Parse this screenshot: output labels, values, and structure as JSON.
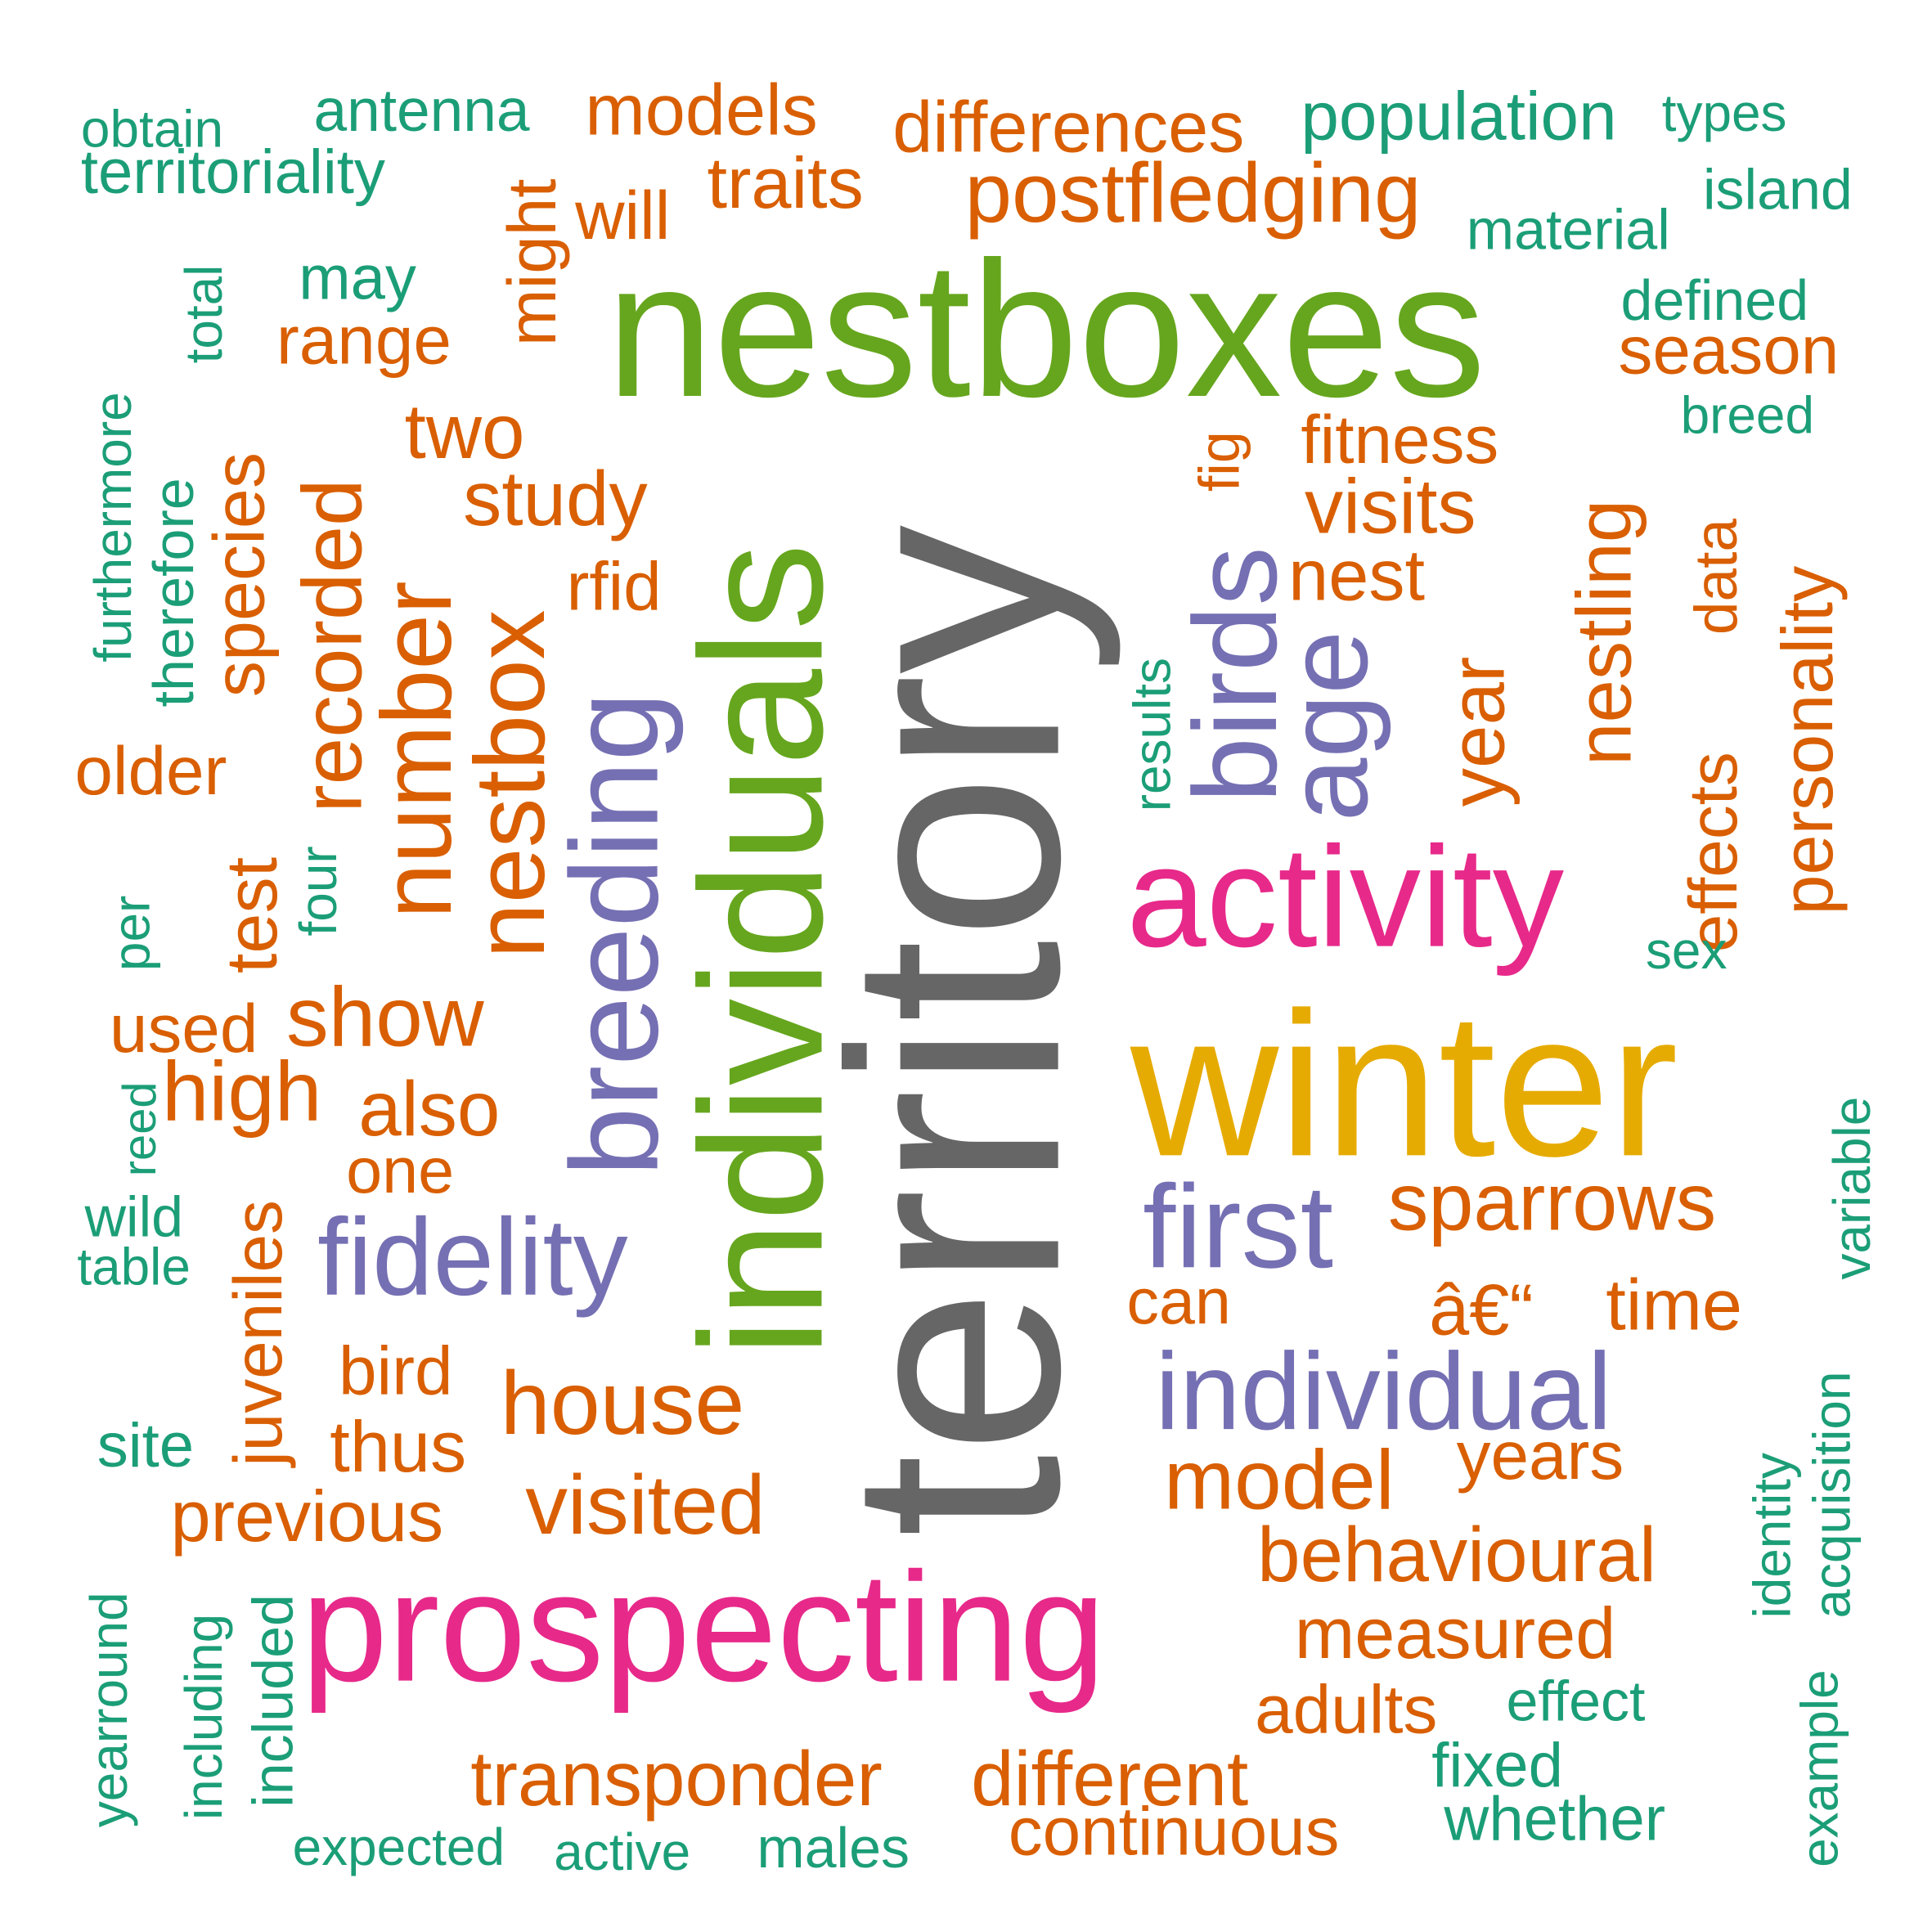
{
  "word_cloud": {
    "colors": {
      "gray": "#666666",
      "green": "#66A61E",
      "gold": "#E6AB02",
      "pink": "#E7298A",
      "purple": "#7570B3",
      "orange": "#D95F02",
      "teal": "#1B9E77"
    },
    "words": [
      {
        "text": "territory",
        "color": "gray",
        "rotation": "vertical"
      },
      {
        "text": "nestboxes",
        "color": "green",
        "rotation": "horizontal"
      },
      {
        "text": "individuals",
        "color": "green",
        "rotation": "vertical"
      },
      {
        "text": "winter",
        "color": "gold",
        "rotation": "horizontal"
      },
      {
        "text": "prospecting",
        "color": "pink",
        "rotation": "horizontal"
      },
      {
        "text": "activity",
        "color": "pink",
        "rotation": "horizontal"
      },
      {
        "text": "breeding",
        "color": "purple",
        "rotation": "vertical"
      },
      {
        "text": "individual",
        "color": "purple",
        "rotation": "horizontal"
      },
      {
        "text": "fidelity",
        "color": "purple",
        "rotation": "horizontal"
      },
      {
        "text": "first",
        "color": "purple",
        "rotation": "horizontal"
      },
      {
        "text": "birds",
        "color": "purple",
        "rotation": "vertical"
      },
      {
        "text": "age",
        "color": "purple",
        "rotation": "vertical"
      },
      {
        "text": "postfledging",
        "color": "orange",
        "rotation": "horizontal"
      },
      {
        "text": "differences",
        "color": "orange",
        "rotation": "horizontal"
      },
      {
        "text": "models",
        "color": "orange",
        "rotation": "horizontal"
      },
      {
        "text": "traits",
        "color": "orange",
        "rotation": "horizontal"
      },
      {
        "text": "will",
        "color": "orange",
        "rotation": "horizontal"
      },
      {
        "text": "might",
        "color": "orange",
        "rotation": "vertical"
      },
      {
        "text": "range",
        "color": "orange",
        "rotation": "horizontal"
      },
      {
        "text": "two",
        "color": "orange",
        "rotation": "horizontal"
      },
      {
        "text": "study",
        "color": "orange",
        "rotation": "horizontal"
      },
      {
        "text": "rfid",
        "color": "orange",
        "rotation": "horizontal"
      },
      {
        "text": "nestbox",
        "color": "orange",
        "rotation": "vertical"
      },
      {
        "text": "number",
        "color": "orange",
        "rotation": "vertical"
      },
      {
        "text": "recorded",
        "color": "orange",
        "rotation": "vertical"
      },
      {
        "text": "species",
        "color": "orange",
        "rotation": "vertical"
      },
      {
        "text": "older",
        "color": "orange",
        "rotation": "horizontal"
      },
      {
        "text": "test",
        "color": "orange",
        "rotation": "vertical"
      },
      {
        "text": "show",
        "color": "orange",
        "rotation": "horizontal"
      },
      {
        "text": "used",
        "color": "orange",
        "rotation": "horizontal"
      },
      {
        "text": "high",
        "color": "orange",
        "rotation": "horizontal"
      },
      {
        "text": "also",
        "color": "orange",
        "rotation": "horizontal"
      },
      {
        "text": "one",
        "color": "orange",
        "rotation": "horizontal"
      },
      {
        "text": "juveniles",
        "color": "orange",
        "rotation": "vertical"
      },
      {
        "text": "bird",
        "color": "orange",
        "rotation": "horizontal"
      },
      {
        "text": "house",
        "color": "orange",
        "rotation": "horizontal"
      },
      {
        "text": "thus",
        "color": "orange",
        "rotation": "horizontal"
      },
      {
        "text": "previous",
        "color": "orange",
        "rotation": "horizontal"
      },
      {
        "text": "visited",
        "color": "orange",
        "rotation": "horizontal"
      },
      {
        "text": "transponder",
        "color": "orange",
        "rotation": "horizontal"
      },
      {
        "text": "different",
        "color": "orange",
        "rotation": "horizontal"
      },
      {
        "text": "continuous",
        "color": "orange",
        "rotation": "horizontal"
      },
      {
        "text": "fitness",
        "color": "orange",
        "rotation": "horizontal"
      },
      {
        "text": "visits",
        "color": "orange",
        "rotation": "horizontal"
      },
      {
        "text": "nest",
        "color": "orange",
        "rotation": "horizontal"
      },
      {
        "text": "fig",
        "color": "orange",
        "rotation": "vertical"
      },
      {
        "text": "year",
        "color": "orange",
        "rotation": "vertical"
      },
      {
        "text": "nestling",
        "color": "orange",
        "rotation": "vertical"
      },
      {
        "text": "effects",
        "color": "orange",
        "rotation": "vertical"
      },
      {
        "text": "data",
        "color": "orange",
        "rotation": "vertical"
      },
      {
        "text": "personality",
        "color": "orange",
        "rotation": "vertical"
      },
      {
        "text": "season",
        "color": "orange",
        "rotation": "horizontal"
      },
      {
        "text": "sparrows",
        "color": "orange",
        "rotation": "horizontal"
      },
      {
        "text": "can",
        "color": "orange",
        "rotation": "horizontal"
      },
      {
        "text": "â€“",
        "color": "orange",
        "rotation": "horizontal"
      },
      {
        "text": "time",
        "color": "orange",
        "rotation": "horizontal"
      },
      {
        "text": "years",
        "color": "orange",
        "rotation": "horizontal"
      },
      {
        "text": "model",
        "color": "orange",
        "rotation": "horizontal"
      },
      {
        "text": "behavioural",
        "color": "orange",
        "rotation": "horizontal"
      },
      {
        "text": "measured",
        "color": "orange",
        "rotation": "horizontal"
      },
      {
        "text": "adults",
        "color": "orange",
        "rotation": "horizontal"
      },
      {
        "text": "obtain",
        "color": "teal",
        "rotation": "horizontal"
      },
      {
        "text": "territoriality",
        "color": "teal",
        "rotation": "horizontal"
      },
      {
        "text": "antenna",
        "color": "teal",
        "rotation": "horizontal"
      },
      {
        "text": "population",
        "color": "teal",
        "rotation": "horizontal"
      },
      {
        "text": "types",
        "color": "teal",
        "rotation": "horizontal"
      },
      {
        "text": "island",
        "color": "teal",
        "rotation": "horizontal"
      },
      {
        "text": "material",
        "color": "teal",
        "rotation": "horizontal"
      },
      {
        "text": "defined",
        "color": "teal",
        "rotation": "horizontal"
      },
      {
        "text": "breed",
        "color": "teal",
        "rotation": "horizontal"
      },
      {
        "text": "may",
        "color": "teal",
        "rotation": "horizontal"
      },
      {
        "text": "total",
        "color": "teal",
        "rotation": "vertical"
      },
      {
        "text": "furthermore",
        "color": "teal",
        "rotation": "vertical"
      },
      {
        "text": "therefore",
        "color": "teal",
        "rotation": "vertical"
      },
      {
        "text": "results",
        "color": "teal",
        "rotation": "vertical"
      },
      {
        "text": "four",
        "color": "teal",
        "rotation": "vertical"
      },
      {
        "text": "per",
        "color": "teal",
        "rotation": "vertical"
      },
      {
        "text": "sex",
        "color": "teal",
        "rotation": "horizontal"
      },
      {
        "text": "reed",
        "color": "teal",
        "rotation": "vertical"
      },
      {
        "text": "wild",
        "color": "teal",
        "rotation": "horizontal"
      },
      {
        "text": "table",
        "color": "teal",
        "rotation": "horizontal"
      },
      {
        "text": "variable",
        "color": "teal",
        "rotation": "vertical"
      },
      {
        "text": "site",
        "color": "teal",
        "rotation": "horizontal"
      },
      {
        "text": "identity",
        "color": "teal",
        "rotation": "vertical"
      },
      {
        "text": "acquisition",
        "color": "teal",
        "rotation": "vertical"
      },
      {
        "text": "example",
        "color": "teal",
        "rotation": "vertical"
      },
      {
        "text": "effect",
        "color": "teal",
        "rotation": "horizontal"
      },
      {
        "text": "fixed",
        "color": "teal",
        "rotation": "horizontal"
      },
      {
        "text": "whether",
        "color": "teal",
        "rotation": "horizontal"
      },
      {
        "text": "yearround",
        "color": "teal",
        "rotation": "vertical"
      },
      {
        "text": "including",
        "color": "teal",
        "rotation": "vertical"
      },
      {
        "text": "included",
        "color": "teal",
        "rotation": "vertical"
      },
      {
        "text": "expected",
        "color": "teal",
        "rotation": "horizontal"
      },
      {
        "text": "active",
        "color": "teal",
        "rotation": "horizontal"
      },
      {
        "text": "males",
        "color": "teal",
        "rotation": "horizontal"
      }
    ]
  }
}
